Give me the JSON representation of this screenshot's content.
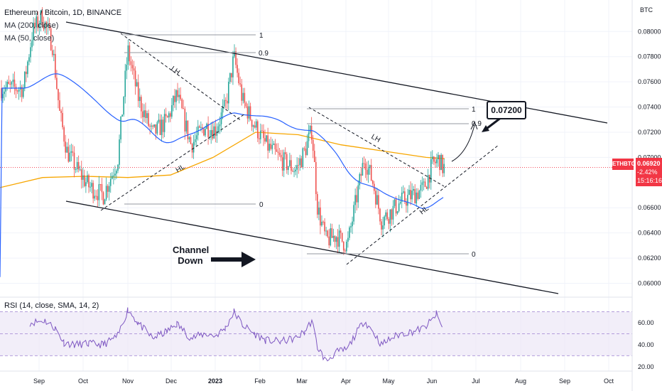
{
  "header": {
    "symbol_title": "Ethereum / Bitcoin, 1D, BINANCE",
    "ma200_label": "MA (200, close)",
    "ma50_label": "MA (50, close)",
    "rsi_label": "RSI (14, close, SMA, 14, 2)",
    "currency": "BTC"
  },
  "price_tag": {
    "ticker": "ETHBTC",
    "price": "0.06920",
    "change": "-2.42%",
    "countdown": "15:16:16"
  },
  "annotations": {
    "target_value": "0.07200",
    "channel_line1": "Channel",
    "channel_line2": "Down",
    "lh1": "LH",
    "lh2": "LH",
    "hl1": "HL",
    "hl2": "HL",
    "fib1_top": "1",
    "fib1_09": "0.9",
    "fib1_0": "0",
    "fib2_top": "1",
    "fib2_09": "0.9",
    "fib2_0": "0"
  },
  "chart_data": [
    {
      "type": "candlestick",
      "title": "Ethereum / Bitcoin, 1D, BINANCE",
      "x_tick_labels": [
        "Sep",
        "Oct",
        "Nov",
        "Dec",
        "2023",
        "Feb",
        "Mar",
        "Apr",
        "May",
        "Jun",
        "Jul",
        "Aug",
        "Sep",
        "Oct"
      ],
      "y_tick_labels": [
        "0.08000",
        "0.07800",
        "0.07600",
        "0.07400",
        "0.07200",
        "0.07000",
        "0.06600",
        "0.06400",
        "0.06200",
        "0.06000"
      ],
      "ylim": [
        0.0589,
        0.0825
      ],
      "series": [
        {
          "name": "ETHBTC",
          "points": [
            [
              "Aug 20",
              0.0755
            ],
            [
              "Aug 27",
              0.08
            ],
            [
              "Sep 3",
              0.0812
            ],
            [
              "Sep 10",
              0.079
            ],
            [
              "Sep 15",
              0.0735
            ],
            [
              "Sep 20",
              0.0705
            ],
            [
              "Sep 27",
              0.069
            ],
            [
              "Oct 5",
              0.0677
            ],
            [
              "Oct 15",
              0.067
            ],
            [
              "Oct 25",
              0.0698
            ],
            [
              "Nov 1",
              0.0785
            ],
            [
              "Nov 8",
              0.0748
            ],
            [
              "Nov 18",
              0.0718
            ],
            [
              "Nov 28",
              0.0729
            ],
            [
              "Dec 5",
              0.075
            ],
            [
              "Dec 15",
              0.071
            ],
            [
              "Dec 25",
              0.0725
            ],
            [
              "Jan 1",
              0.0722
            ],
            [
              "Jan 8",
              0.074
            ],
            [
              "Jan 14",
              0.078
            ],
            [
              "Jan 20",
              0.0745
            ],
            [
              "Jan 28",
              0.0726
            ],
            [
              "Feb 5",
              0.071
            ],
            [
              "Feb 15",
              0.0698
            ],
            [
              "Feb 25",
              0.069
            ],
            [
              "Mar 3",
              0.0705
            ],
            [
              "Mar 8",
              0.0722
            ],
            [
              "Mar 12",
              0.066
            ],
            [
              "Mar 18",
              0.0634
            ],
            [
              "Mar 25",
              0.0638
            ],
            [
              "Apr 2",
              0.063
            ],
            [
              "Apr 8",
              0.0665
            ],
            [
              "Apr 14",
              0.07
            ],
            [
              "Apr 20",
              0.068
            ],
            [
              "Apr 26",
              0.065
            ],
            [
              "May 3",
              0.0657
            ],
            [
              "May 10",
              0.0665
            ],
            [
              "May 18",
              0.067
            ],
            [
              "May 26",
              0.0675
            ],
            [
              "Jun 1",
              0.0693
            ],
            [
              "Jun 6",
              0.0699
            ],
            [
              "Jun 8",
              0.0692
            ]
          ]
        },
        {
          "name": "MA (200, close)",
          "color": "#f7a600"
        },
        {
          "name": "MA (50, close)",
          "color": "#2962ff"
        }
      ],
      "levels": {
        "last_price": 0.0692,
        "target": 0.072
      },
      "legend": "top-left",
      "grid": true
    },
    {
      "type": "line",
      "title": "RSI (14, close, SMA, 14, 2)",
      "y_tick_labels": [
        "60.00",
        "40.00",
        "20.00"
      ],
      "ylim": [
        16,
        82
      ],
      "band": [
        30,
        70
      ],
      "midline": 50,
      "series": [
        {
          "name": "RSI",
          "color": "#7e57c2",
          "points": [
            [
              "Aug 25",
              60
            ],
            [
              "Sep 5",
              62
            ],
            [
              "Sep 12",
              55
            ],
            [
              "Sep 18",
              42
            ],
            [
              "Sep 25",
              40
            ],
            [
              "Oct 5",
              41
            ],
            [
              "Oct 15",
              40
            ],
            [
              "Oct 25",
              48
            ],
            [
              "Nov 1",
              72
            ],
            [
              "Nov 8",
              60
            ],
            [
              "Nov 18",
              46
            ],
            [
              "Nov 28",
              52
            ],
            [
              "Dec 5",
              59
            ],
            [
              "Dec 15",
              46
            ],
            [
              "Dec 25",
              50
            ],
            [
              "Jan 1",
              48
            ],
            [
              "Jan 8",
              55
            ],
            [
              "Jan 14",
              70
            ],
            [
              "Jan 20",
              58
            ],
            [
              "Jan 28",
              50
            ],
            [
              "Feb 5",
              44
            ],
            [
              "Feb 15",
              43
            ],
            [
              "Feb 25",
              46
            ],
            [
              "Mar 3",
              52
            ],
            [
              "Mar 8",
              62
            ],
            [
              "Mar 12",
              38
            ],
            [
              "Mar 18",
              25
            ],
            [
              "Mar 25",
              33
            ],
            [
              "Apr 2",
              36
            ],
            [
              "Apr 8",
              50
            ],
            [
              "Apr 14",
              62
            ],
            [
              "Apr 20",
              52
            ],
            [
              "Apr 26",
              40
            ],
            [
              "May 3",
              46
            ],
            [
              "May 10",
              50
            ],
            [
              "May 18",
              52
            ],
            [
              "May 26",
              55
            ],
            [
              "Jun 1",
              62
            ],
            [
              "Jun 4",
              68
            ],
            [
              "Jun 8",
              56
            ]
          ]
        }
      ]
    }
  ]
}
